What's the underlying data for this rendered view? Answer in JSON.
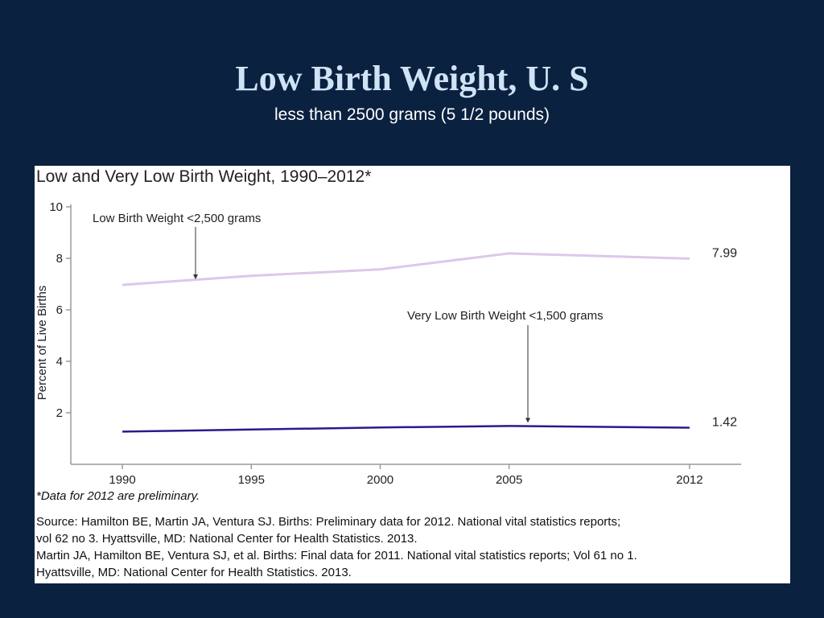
{
  "slide": {
    "title": "Low Birth Weight, U. S",
    "subtitle": "less than 2500 grams (5 1/2 pounds)"
  },
  "colors": {
    "background": "#0b2140",
    "title": "#cfe3f5",
    "lbw_series": "#dcc8ea",
    "vlbw_series": "#2a1a8c"
  },
  "chart_data": {
    "type": "line",
    "title": "Low and Very Low Birth Weight, 1990–2012*",
    "xlabel": "",
    "ylabel": "Percent of Live Births",
    "x": [
      1990,
      1995,
      2000,
      2005,
      2012
    ],
    "x_tick_labels": [
      "1990",
      "1995",
      "2000",
      "2005",
      "2012"
    ],
    "y_ticks": [
      2,
      4,
      6,
      8,
      10
    ],
    "y_tick_labels": [
      "2",
      "4",
      "6",
      "8",
      "10"
    ],
    "ylim": [
      0,
      10
    ],
    "grid": false,
    "series": [
      {
        "name": "Low Birth Weight <2,500 grams",
        "values": [
          6.97,
          7.32,
          7.57,
          8.19,
          7.99
        ],
        "end_label": "7.99"
      },
      {
        "name": "Very Low Birth Weight <1,500 grams",
        "values": [
          1.27,
          1.35,
          1.43,
          1.49,
          1.42
        ],
        "end_label": "1.42"
      }
    ],
    "note": "*Data for 2012 are preliminary.",
    "source": [
      "Source: Hamilton BE, Martin JA, Ventura SJ. Births: Preliminary data for 2012. National vital statistics reports;",
      "vol 62 no 3. Hyattsville, MD: National Center for Health Statistics. 2013.",
      "Martin JA, Hamilton BE, Ventura SJ, et al. Births: Final data for 2011. National vital statistics reports; Vol 61 no 1.",
      "Hyattsville, MD: National Center for Health Statistics. 2013."
    ]
  }
}
